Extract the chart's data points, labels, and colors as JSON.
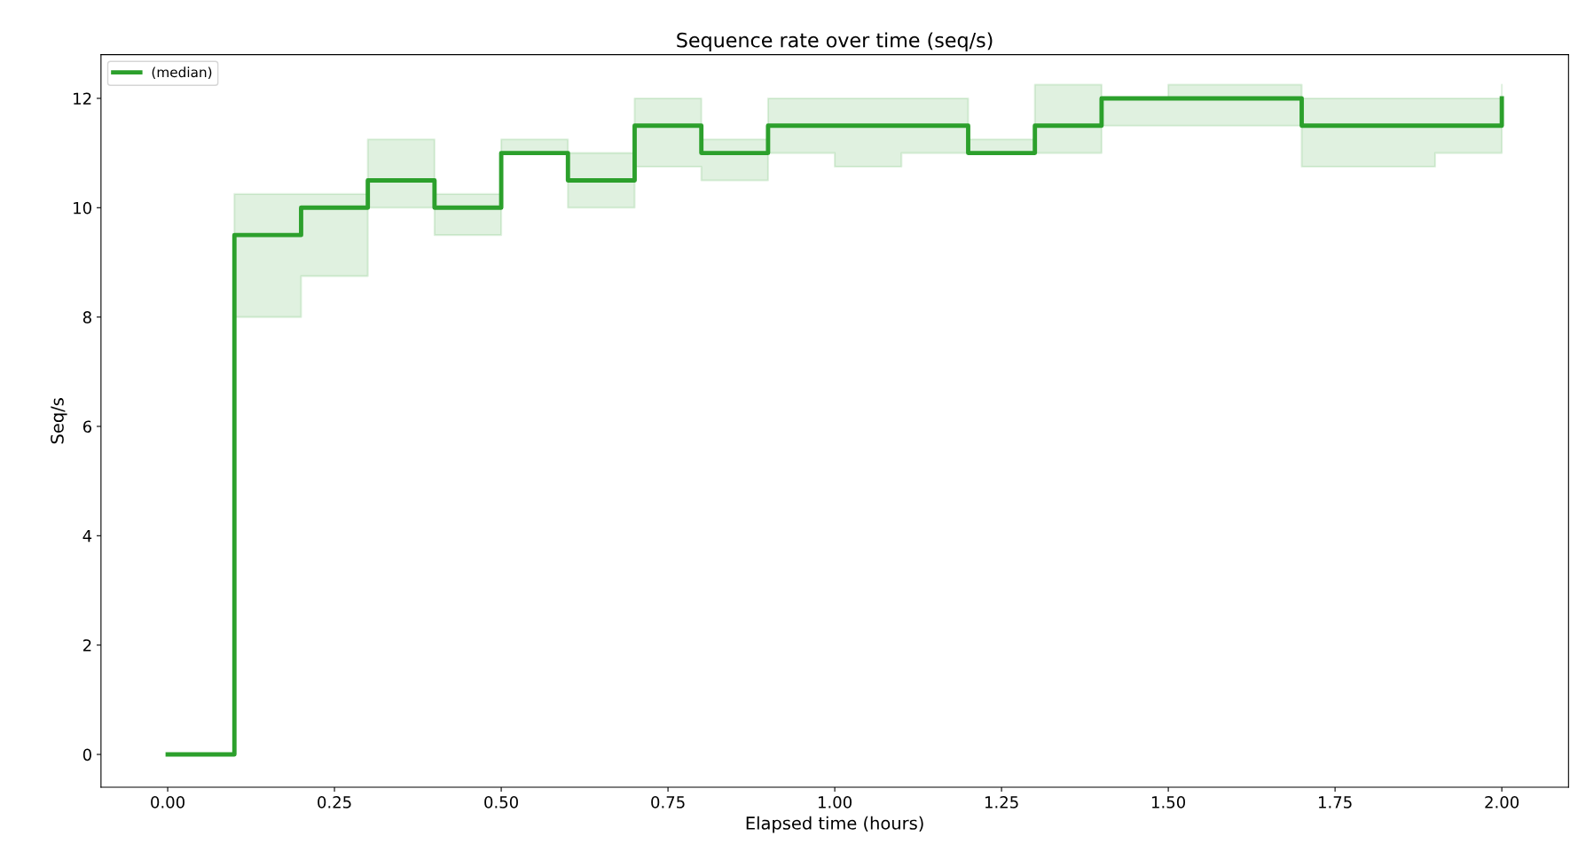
{
  "chart_data": {
    "type": "step",
    "title": "Sequence rate over time (seq/s)",
    "xlabel": "Elapsed time (hours)",
    "ylabel": "Seq/s",
    "x": [
      0.0,
      0.1,
      0.2,
      0.3,
      0.4,
      0.5,
      0.6,
      0.7,
      0.8,
      0.9,
      1.0,
      1.1,
      1.2,
      1.3,
      1.4,
      1.5,
      1.6,
      1.7,
      1.8,
      1.9,
      2.0
    ],
    "series": [
      {
        "name": "(median)",
        "color": "#2ca02c",
        "values": [
          0,
          9.5,
          10,
          10.5,
          10,
          11,
          10.5,
          11.5,
          11,
          11.5,
          11.5,
          11.5,
          11,
          11.5,
          12,
          12,
          12,
          11.5,
          11.5,
          11.5,
          12
        ],
        "lower": [
          0,
          8,
          8.75,
          10,
          9.5,
          11,
          10,
          10.75,
          10.5,
          11,
          10.75,
          11,
          11,
          11,
          11.5,
          11.5,
          11.5,
          10.75,
          10.75,
          11,
          11
        ],
        "upper": [
          0,
          10.25,
          10.25,
          11.25,
          10.25,
          11.25,
          11,
          12,
          11.25,
          12,
          12,
          12,
          11.25,
          12.25,
          12,
          12.25,
          12.25,
          12,
          12,
          12,
          12.25
        ]
      }
    ],
    "xlim": [
      -0.1,
      2.1
    ],
    "ylim": [
      -0.6,
      12.8
    ],
    "xticks": [
      {
        "value": 0,
        "label": "0.00"
      },
      {
        "value": 0.25,
        "label": "0.25"
      },
      {
        "value": 0.5,
        "label": "0.50"
      },
      {
        "value": 0.75,
        "label": "0.75"
      },
      {
        "value": 1.0,
        "label": "1.00"
      },
      {
        "value": 1.25,
        "label": "1.25"
      },
      {
        "value": 1.5,
        "label": "1.50"
      },
      {
        "value": 1.75,
        "label": "1.75"
      },
      {
        "value": 2.0,
        "label": "2.00"
      }
    ],
    "yticks": [
      0,
      2,
      4,
      6,
      8,
      10,
      12
    ],
    "grid": false,
    "legend": "top left"
  }
}
